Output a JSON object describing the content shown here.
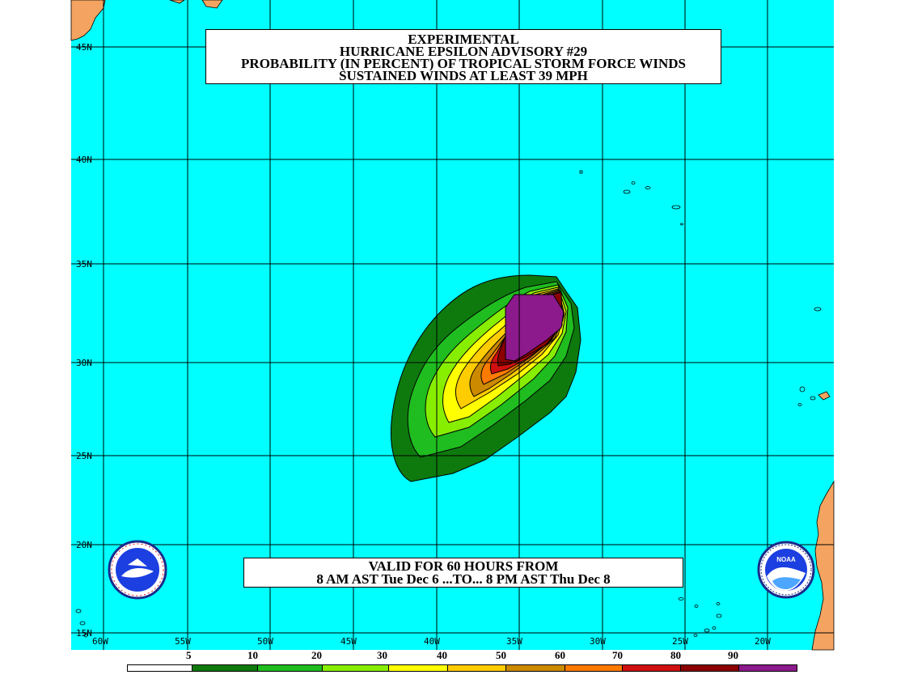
{
  "title": {
    "line1": "EXPERIMENTAL",
    "line2": "HURRICANE EPSILON ADVISORY #29",
    "line3": "PROBABILITY (IN PERCENT) OF TROPICAL STORM FORCE WINDS",
    "line4": "SUSTAINED WINDS AT LEAST 39 MPH"
  },
  "valid": {
    "line1": "VALID FOR 60 HOURS FROM",
    "line2": "8 AM AST Tue Dec 6 ...TO... 8 PM AST Thu Dec 8"
  },
  "latitudes": [
    "45N",
    "40N",
    "35N",
    "30N",
    "25N",
    "20N",
    "15N"
  ],
  "longitudes": [
    "60W",
    "55W",
    "50W",
    "45W",
    "40W",
    "35W",
    "30W",
    "25W",
    "20W"
  ],
  "legend": {
    "labels": [
      "5",
      "10",
      "20",
      "30",
      "40",
      "50",
      "60",
      "70",
      "80",
      "90"
    ],
    "colors": [
      "#ffffff",
      "#0e7a0e",
      "#1fbd1f",
      "#88ee00",
      "#ffff00",
      "#ffcc00",
      "#cc8a00",
      "#ff7a00",
      "#d01010",
      "#8c0000",
      "#8c1a8c"
    ]
  },
  "colors": {
    "ocean": "#00ffff",
    "land": "#f4a460",
    "grid": "#000000"
  },
  "logos": {
    "left": "National Weather Service",
    "right": "NOAA"
  }
}
